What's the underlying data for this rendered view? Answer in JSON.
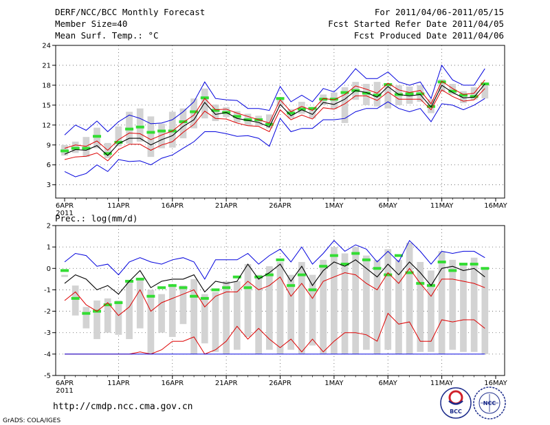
{
  "header": {
    "title": "DERF/NCC/BCC Monthly Forecast",
    "member_size": "Member Size=40",
    "variable": "Mean Surf. Temp.: °C",
    "period": "For 2011/04/06-2011/05/15",
    "start_date": "Fcst Started Refer Date 2011/04/05",
    "produced_date": "Fcst Produced Date 2011/04/06"
  },
  "footer": {
    "url": "http://cmdp.ncc.cma.gov.cn",
    "grads": "GrADS: COLA/IGES",
    "logo_bcc": "BCC",
    "logo_ncc": "NCC"
  },
  "colors": {
    "box": "#d3d3d3",
    "mean_tick": "#33dd33",
    "median": "#000000",
    "inner": "#dd0000",
    "outer": "#0000dd"
  },
  "chart_data": [
    {
      "type": "line",
      "title": "Mean Surf. Temp.: °C",
      "x_days": 40,
      "xticks": [
        {
          "label": "6APR",
          "day": 0
        },
        {
          "label": "11APR",
          "day": 5
        },
        {
          "label": "16APR",
          "day": 10
        },
        {
          "label": "21APR",
          "day": 15
        },
        {
          "label": "26APR",
          "day": 20
        },
        {
          "label": "1MAY",
          "day": 25
        },
        {
          "label": "6MAY",
          "day": 30
        },
        {
          "label": "11MAY",
          "day": 35
        },
        {
          "label": "16MAY",
          "day": 40
        }
      ],
      "year_label": "2011",
      "ylim": [
        1,
        24
      ],
      "yticks": [
        3,
        6,
        9,
        12,
        15,
        18,
        21,
        24
      ],
      "series": [
        {
          "name": "upper",
          "color": "#0000dd",
          "values": [
            10.5,
            12.0,
            11.2,
            12.6,
            11.0,
            12.5,
            13.5,
            13.0,
            12.2,
            12.3,
            12.8,
            14.0,
            15.5,
            18.5,
            16.0,
            15.8,
            15.7,
            14.5,
            14.5,
            14.2,
            17.8,
            15.5,
            16.5,
            15.5,
            17.5,
            17.0,
            18.5,
            20.5,
            19.0,
            19.0,
            20.0,
            18.5,
            18.0,
            18.5,
            16.0,
            21.0,
            18.8,
            18.0,
            18.0,
            20.5
          ]
        },
        {
          "name": "inner_upper",
          "color": "#dd0000",
          "values": [
            8.5,
            9.0,
            8.8,
            9.6,
            8.2,
            9.8,
            10.8,
            10.7,
            9.8,
            10.5,
            11.1,
            12.4,
            13.5,
            16.0,
            14.3,
            14.4,
            13.8,
            13.3,
            12.8,
            12.3,
            15.8,
            14.0,
            14.8,
            14.2,
            16.0,
            15.8,
            16.6,
            17.9,
            17.4,
            16.8,
            18.3,
            17.3,
            16.9,
            17.2,
            15.2,
            18.6,
            17.5,
            16.6,
            16.8,
            18.8
          ]
        },
        {
          "name": "median",
          "color": "#000000",
          "values": [
            7.6,
            8.3,
            8.2,
            8.9,
            7.4,
            9.2,
            10.0,
            10.0,
            9.0,
            9.8,
            10.4,
            11.8,
            12.8,
            15.4,
            13.6,
            13.9,
            13.0,
            12.7,
            12.4,
            11.7,
            15.1,
            13.4,
            14.3,
            13.6,
            15.4,
            15.1,
            15.9,
            17.2,
            16.9,
            16.2,
            17.8,
            16.6,
            16.4,
            16.6,
            14.7,
            18.0,
            16.9,
            16.1,
            16.2,
            18.2
          ]
        },
        {
          "name": "inner_lower",
          "color": "#dd0000",
          "values": [
            6.8,
            7.2,
            7.3,
            7.8,
            6.6,
            8.3,
            9.1,
            9.1,
            8.2,
            9.0,
            9.5,
            10.9,
            12.1,
            14.1,
            13.0,
            12.9,
            12.3,
            11.9,
            11.8,
            11.0,
            14.3,
            12.8,
            13.5,
            12.9,
            14.6,
            14.4,
            15.2,
            16.4,
            16.4,
            15.7,
            17.0,
            15.9,
            15.9,
            15.9,
            14.3,
            17.3,
            16.3,
            15.6,
            15.8,
            17.5
          ]
        },
        {
          "name": "lower",
          "color": "#0000dd",
          "values": [
            5.0,
            4.2,
            4.7,
            6.0,
            5.0,
            6.8,
            6.5,
            6.6,
            6.0,
            7.0,
            7.5,
            8.5,
            9.5,
            11.0,
            11.0,
            10.7,
            10.3,
            10.4,
            10.0,
            8.8,
            13.0,
            11.0,
            11.5,
            11.5,
            12.8,
            12.8,
            13.0,
            14.0,
            14.5,
            14.5,
            15.5,
            14.5,
            14.0,
            14.5,
            12.5,
            15.2,
            15.0,
            14.3,
            15.0,
            16.0
          ]
        }
      ],
      "boxes": {
        "low": [
          7.4,
          7.8,
          7.2,
          8.5,
          7.0,
          8.8,
          9.2,
          9.5,
          7.2,
          8.5,
          8.6,
          10.0,
          11.5,
          13.0,
          12.6,
          13.2,
          12.4,
          11.9,
          11.9,
          11.5,
          14.8,
          13.0,
          13.7,
          13.0,
          15.0,
          14.4,
          12.3,
          15.8,
          15.0,
          14.8,
          14.5,
          15.0,
          15.2,
          15.5,
          13.8,
          17.0,
          16.6,
          15.3,
          15.8,
          16.0
        ],
        "high": [
          9.0,
          9.5,
          10.2,
          11.6,
          9.3,
          11.8,
          14.0,
          14.5,
          13.3,
          12.2,
          14.0,
          14.5,
          16.0,
          17.5,
          15.1,
          14.7,
          14.1,
          13.7,
          13.4,
          13.6,
          16.0,
          14.4,
          15.5,
          14.7,
          16.6,
          16.9,
          17.7,
          18.5,
          18.2,
          18.5,
          18.0,
          18.0,
          17.8,
          18.0,
          15.9,
          18.9,
          18.2,
          17.1,
          17.7,
          18.0
        ]
      },
      "mean_ticks": [
        8.1,
        8.5,
        8.5,
        10.3,
        7.7,
        9.4,
        11.4,
        11.7,
        10.9,
        11.1,
        11.1,
        12.5,
        14.0,
        16.1,
        14.2,
        13.9,
        13.3,
        12.8,
        12.8,
        12.1,
        16.0,
        13.8,
        14.4,
        14.5,
        15.9,
        15.9,
        16.9,
        17.2,
        16.8,
        16.5,
        18.1,
        16.6,
        16.7,
        16.7,
        14.8,
        18.5,
        17.1,
        16.5,
        16.3,
        18.2
      ]
    },
    {
      "type": "line",
      "title": "Prec.: log(mm/d)",
      "x_days": 40,
      "xticks": [
        {
          "label": "6APR",
          "day": 0
        },
        {
          "label": "11APR",
          "day": 5
        },
        {
          "label": "16APR",
          "day": 10
        },
        {
          "label": "21APR",
          "day": 15
        },
        {
          "label": "26APR",
          "day": 20
        },
        {
          "label": "1MAY",
          "day": 25
        },
        {
          "label": "6MAY",
          "day": 30
        },
        {
          "label": "11MAY",
          "day": 35
        },
        {
          "label": "16MAY",
          "day": 40
        }
      ],
      "year_label": "2011",
      "ylim": [
        -5,
        2
      ],
      "yticks": [
        -5,
        -4,
        -3,
        -2,
        -1,
        0,
        1,
        2
      ],
      "series": [
        {
          "name": "upper",
          "color": "#0000dd",
          "values": [
            0.3,
            0.7,
            0.6,
            0.1,
            0.2,
            -0.3,
            0.3,
            0.5,
            0.3,
            0.2,
            0.4,
            0.5,
            0.3,
            -0.5,
            0.4,
            0.4,
            0.4,
            0.7,
            0.2,
            0.6,
            0.9,
            0.3,
            1.0,
            0.2,
            0.7,
            1.3,
            0.8,
            1.1,
            0.9,
            0.3,
            0.8,
            0.3,
            1.3,
            0.8,
            0.2,
            0.8,
            0.7,
            0.8,
            0.8,
            0.5
          ]
        },
        {
          "name": "inner_upper",
          "color": "#dd0000",
          "values": [
            -1.5,
            -1.1,
            -1.7,
            -2.0,
            -1.6,
            -2.2,
            -1.8,
            -1.0,
            -2.0,
            -1.6,
            -1.4,
            -1.2,
            -1.0,
            -1.8,
            -1.3,
            -1.1,
            -1.1,
            -0.6,
            -1.0,
            -0.8,
            -0.4,
            -1.3,
            -0.7,
            -1.4,
            -0.6,
            -0.4,
            -0.2,
            -0.3,
            -0.7,
            -1.0,
            -0.2,
            -0.7,
            0.0,
            -0.7,
            -1.3,
            -0.5,
            -0.5,
            -0.6,
            -0.7,
            -0.9
          ]
        },
        {
          "name": "median",
          "color": "#000000",
          "values": [
            -0.7,
            -0.3,
            -0.5,
            -1.0,
            -0.8,
            -1.2,
            -0.6,
            -0.1,
            -0.9,
            -0.6,
            -0.5,
            -0.5,
            -0.3,
            -1.1,
            -0.6,
            -0.7,
            -0.6,
            0.2,
            -0.5,
            -0.2,
            0.2,
            -0.6,
            0.1,
            -0.8,
            -0.1,
            0.3,
            0.1,
            0.4,
            0.0,
            -0.4,
            0.2,
            -0.3,
            0.3,
            -0.2,
            -0.8,
            0.0,
            0.1,
            -0.1,
            0.0,
            -0.4
          ]
        },
        {
          "name": "inner_lower",
          "color": "#dd0000",
          "values": [
            -4.0,
            -4.0,
            -4.0,
            -4.0,
            -4.0,
            -4.0,
            -4.0,
            -3.9,
            -4.0,
            -3.8,
            -3.4,
            -3.4,
            -3.2,
            -4.0,
            -3.8,
            -3.4,
            -2.7,
            -3.3,
            -2.8,
            -3.3,
            -3.7,
            -3.3,
            -3.9,
            -3.3,
            -3.9,
            -3.4,
            -3.0,
            -3.0,
            -3.1,
            -3.4,
            -2.1,
            -2.6,
            -2.5,
            -3.4,
            -3.4,
            -2.4,
            -2.5,
            -2.4,
            -2.4,
            -2.8
          ]
        },
        {
          "name": "lower",
          "color": "#0000dd",
          "values": [
            -4.0,
            -4.0,
            -4.0,
            -4.0,
            -4.0,
            -4.0,
            -4.0,
            -4.0,
            -4.0,
            -4.0,
            -4.0,
            -4.0,
            -4.0,
            -4.0,
            -4.0,
            -4.0,
            -4.0,
            -4.0,
            -4.0,
            -4.0,
            -4.0,
            -4.0,
            -4.0,
            -4.0,
            -4.0,
            -4.0,
            -4.0,
            -4.0,
            -4.0,
            -4.0,
            -4.0,
            -4.0,
            -4.0,
            -4.0,
            -4.0,
            -4.0,
            -4.0,
            -4.0,
            -4.0,
            -4.0
          ]
        }
      ],
      "boxes": {
        "low": [
          -0.4,
          -2.2,
          -2.8,
          -3.3,
          -3.0,
          -3.1,
          -3.3,
          -2.8,
          -4.0,
          -3.0,
          -3.2,
          -2.6,
          -4.0,
          -3.5,
          -3.9,
          -4.0,
          -3.8,
          -3.2,
          -4.0,
          -3.8,
          -4.0,
          -3.8,
          -4.0,
          -3.6,
          -4.0,
          -4.0,
          -4.0,
          -4.0,
          -3.8,
          -4.0,
          -3.8,
          -4.0,
          -4.0,
          -3.9,
          -3.9,
          -4.0,
          -3.8,
          -3.9,
          -3.9,
          -4.0
        ],
        "high": [
          -0.3,
          -0.8,
          -1.8,
          -1.5,
          -1.4,
          -1.5,
          -0.6,
          -0.5,
          -1.0,
          -1.2,
          -0.8,
          -0.8,
          -0.5,
          -1.2,
          -1.1,
          -0.6,
          -0.6,
          0.2,
          -0.3,
          0.1,
          0.3,
          -0.3,
          0.3,
          -0.3,
          0.4,
          1.0,
          0.7,
          1.0,
          0.6,
          0.4,
          0.9,
          0.4,
          1.2,
          0.3,
          -0.1,
          0.8,
          0.4,
          0.2,
          0.5,
          0.0
        ]
      },
      "mean_ticks": [
        -0.1,
        -1.4,
        -2.1,
        -2.0,
        -1.7,
        -1.6,
        -0.6,
        -0.5,
        -1.3,
        -0.9,
        -0.8,
        -0.9,
        -1.3,
        -1.4,
        -1.0,
        -0.9,
        -0.4,
        -0.9,
        -0.4,
        -0.3,
        0.4,
        -0.8,
        -0.3,
        -1.0,
        0.1,
        0.6,
        0.2,
        0.7,
        0.4,
        0.0,
        -0.3,
        0.6,
        -0.2,
        -0.7,
        -0.8,
        0.3,
        -0.1,
        0.2,
        0.2,
        0.0
      ]
    }
  ]
}
